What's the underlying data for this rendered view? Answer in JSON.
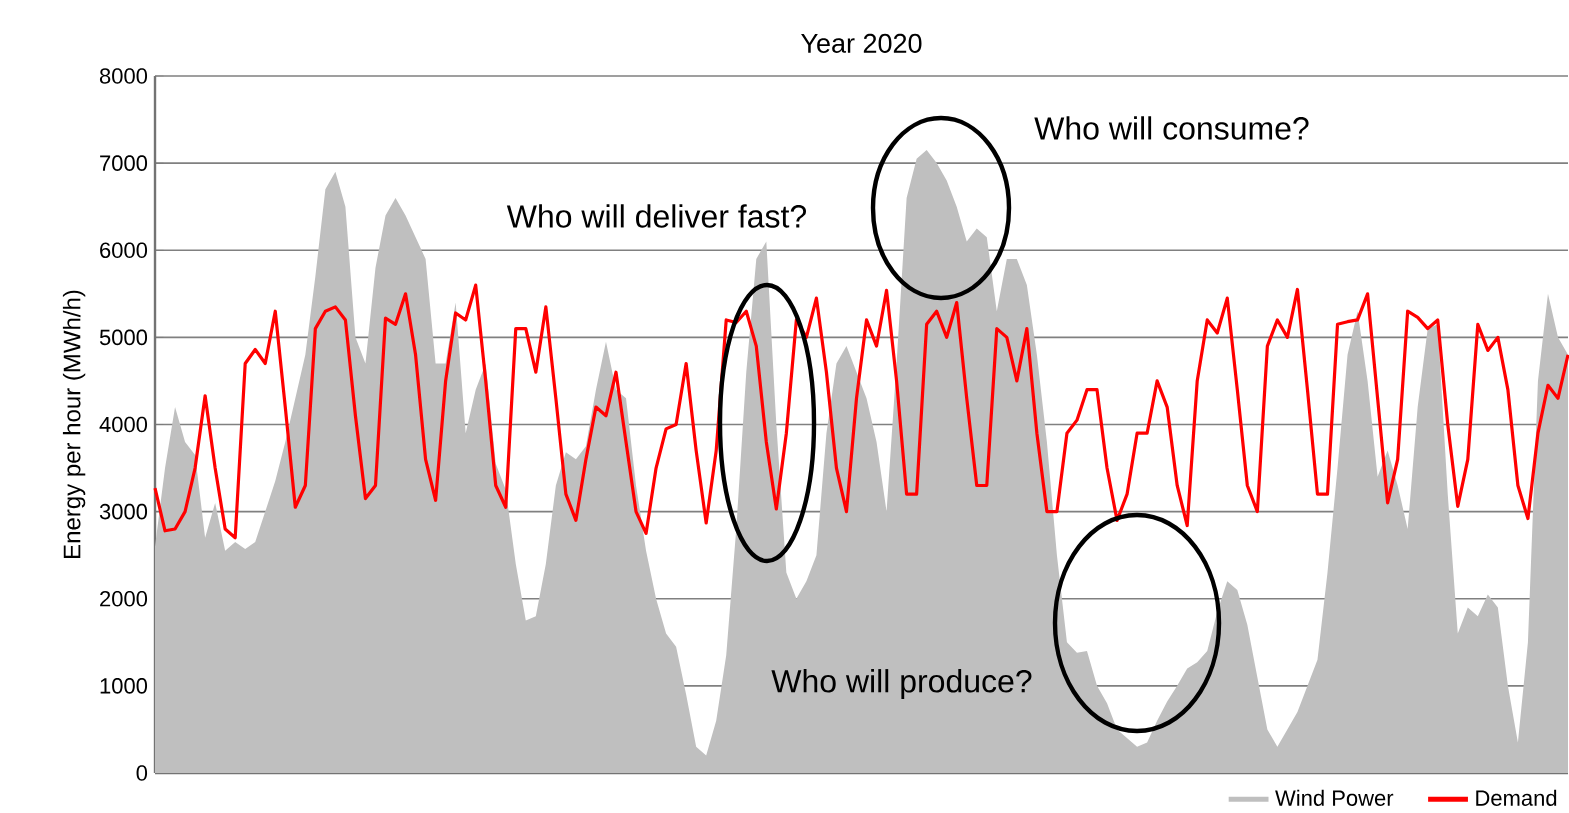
{
  "chart_data": {
    "type": "area",
    "title": "Year 2020",
    "ylabel": "Energy per hour (MWh/h)",
    "categories": [
      null,
      null,
      null,
      null,
      null,
      null,
      null,
      null,
      null,
      null,
      null,
      null,
      null,
      null,
      null,
      null,
      null,
      null,
      null,
      null,
      null,
      null,
      null,
      null,
      null,
      null,
      null,
      null,
      null,
      null,
      null,
      null,
      null,
      null,
      null,
      null,
      null,
      null,
      null,
      null,
      null,
      null,
      null,
      null,
      null,
      null,
      null,
      null,
      null,
      null,
      null,
      null,
      null,
      null,
      null,
      null,
      null,
      null,
      null,
      null,
      null,
      null,
      null,
      null,
      null,
      null,
      null,
      null,
      null,
      null,
      null,
      null,
      null,
      null,
      null,
      null,
      null,
      null,
      null,
      null,
      null,
      null,
      null,
      null,
      null,
      null,
      null,
      null,
      null,
      null,
      null,
      null,
      null,
      null,
      null,
      null,
      null,
      null,
      null,
      null,
      null,
      null,
      null,
      null,
      null,
      null,
      null,
      null,
      null,
      null,
      null,
      null,
      null,
      null,
      null,
      null,
      null,
      null,
      null,
      null,
      null,
      null,
      null,
      null,
      null,
      null,
      null,
      null,
      null,
      null,
      null,
      null,
      null,
      null,
      null,
      null,
      null,
      null,
      null,
      null,
      null,
      null
    ],
    "series": [
      {
        "name": "Wind Power",
        "color": "#bfbfbf",
        "values": [
          2600,
          3500,
          4200,
          3800,
          3650,
          2700,
          3100,
          2550,
          2650,
          2570,
          2650,
          3000,
          3350,
          3800,
          4300,
          4800,
          5700,
          6700,
          6900,
          6500,
          5000,
          4700,
          5800,
          6400,
          6600,
          6400,
          6150,
          5900,
          4700,
          4700,
          5400,
          3900,
          4400,
          4700,
          3550,
          3250,
          2400,
          1750,
          1800,
          2400,
          3300,
          3680,
          3600,
          3750,
          4400,
          4950,
          4400,
          4300,
          3300,
          2550,
          2000,
          1600,
          1450,
          900,
          300,
          200,
          600,
          1350,
          2800,
          4600,
          5900,
          6100,
          4000,
          2300,
          2000,
          2200,
          2500,
          3900,
          4700,
          4900,
          4600,
          4300,
          3800,
          3000,
          4700,
          6600,
          7050,
          7150,
          7000,
          6800,
          6500,
          6100,
          6250,
          6150,
          5300,
          5900,
          5900,
          5600,
          4800,
          3800,
          2500,
          1500,
          1380,
          1400,
          1000,
          800,
          500,
          400,
          300,
          350,
          600,
          820,
          1000,
          1200,
          1270,
          1400,
          1850,
          2200,
          2100,
          1700,
          1100,
          500,
          300,
          500,
          700,
          1000,
          1300,
          2300,
          3500,
          4800,
          5300,
          4500,
          3400,
          3700,
          3300,
          2800,
          4200,
          5100,
          5150,
          3200,
          1600,
          1900,
          1800,
          2050,
          1900,
          1000,
          350,
          1500,
          4500,
          5500,
          5000,
          4800
        ]
      },
      {
        "name": "Demand",
        "type": "line",
        "color": "#ff0000",
        "values": [
          3270,
          2780,
          2800,
          3000,
          3500,
          4330,
          3500,
          2800,
          2700,
          4700,
          4860,
          4700,
          5300,
          4200,
          3050,
          3300,
          5100,
          5300,
          5350,
          5200,
          4100,
          3150,
          3300,
          5220,
          5150,
          5500,
          4800,
          3600,
          3130,
          4500,
          5280,
          5200,
          5600,
          4500,
          3300,
          3050,
          5100,
          5100,
          4600,
          5350,
          4300,
          3200,
          2900,
          3600,
          4200,
          4100,
          4600,
          3800,
          3000,
          2750,
          3500,
          3950,
          4000,
          4700,
          3700,
          2870,
          3700,
          5200,
          5170,
          5300,
          4900,
          3800,
          3030,
          3900,
          5200,
          5000,
          5450,
          4600,
          3500,
          3000,
          4300,
          5200,
          4900,
          5540,
          4500,
          3200,
          3200,
          5150,
          5300,
          5000,
          5400,
          4300,
          3300,
          3300,
          5100,
          5000,
          4500,
          5100,
          3900,
          3000,
          3000,
          3900,
          4050,
          4400,
          4400,
          3500,
          2900,
          3200,
          3900,
          3900,
          4500,
          4200,
          3300,
          2840,
          4500,
          5200,
          5050,
          5450,
          4400,
          3300,
          3000,
          4900,
          5200,
          5000,
          5550,
          4400,
          3200,
          3200,
          5150,
          5180,
          5200,
          5500,
          4300,
          3100,
          3600,
          5300,
          5230,
          5100,
          5200,
          4000,
          3060,
          3600,
          5150,
          4850,
          5000,
          4400,
          3300,
          2920,
          3900,
          4450,
          4300,
          4800
        ]
      }
    ],
    "ylim": [
      0,
      8000
    ],
    "yticks": [
      0,
      1000,
      2000,
      3000,
      4000,
      5000,
      6000,
      7000,
      8000
    ],
    "grid": "y",
    "legend": "bottom right",
    "annotations": [
      "Who will deliver fast?",
      "Who will consume?",
      "Who will produce?"
    ]
  }
}
